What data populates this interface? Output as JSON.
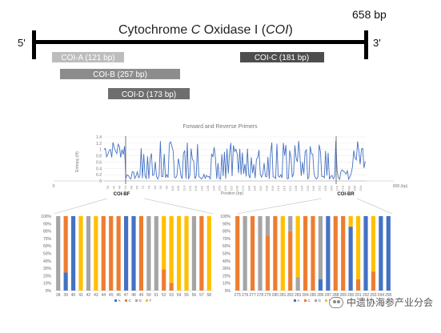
{
  "map": {
    "gene_title_prefix": "Cytochrome ",
    "gene_title_italic": "C",
    "gene_title_mid": " Oxidase I (",
    "gene_title_abbrev": "COI",
    "gene_title_suffix": ")",
    "end_label": "658 bp",
    "five_prime": "5'",
    "three_prime": "3'",
    "fragments": [
      {
        "label": "COI-A (121 bp)",
        "color": "#bdbdbd"
      },
      {
        "label": "COI-B (257 bp)",
        "color": "#8c8c8c"
      },
      {
        "label": "COI-D (173 bp)",
        "color": "#6e6e6e"
      },
      {
        "label": "COI-C  (181 bp)",
        "color": "#4d4d4d"
      }
    ]
  },
  "chart_data": [
    {
      "type": "line",
      "title": "Forward and Reverse Primers",
      "xlabel": "Position (bp)",
      "ylabel": "Entropy (H)",
      "ylim": [
        0,
        1.4
      ],
      "yticks": [
        "0",
        "0.2",
        "0.4",
        "0.6",
        "0.8",
        "1",
        "1.2",
        "1.4"
      ],
      "x_start_label": "0",
      "x_end_label": "658 (bp)",
      "primer_labels": [
        "COI-BF",
        "COI-BR"
      ],
      "color": "#4472c4",
      "dense_tick_labels": [
        "36",
        "42",
        "48",
        "54",
        "60",
        "66",
        "72",
        "78",
        "84",
        "90",
        "96",
        "102",
        "108",
        "114",
        "120",
        "126",
        "132",
        "138",
        "144",
        "150",
        "156",
        "162",
        "168",
        "174",
        "180",
        "186",
        "192",
        "198",
        "204",
        "210",
        "216",
        "222",
        "228",
        "234",
        "240",
        "246",
        "252",
        "258",
        "264",
        "270",
        "276",
        "282",
        "288",
        "294"
      ]
    },
    {
      "type": "bar",
      "stacked": true,
      "categories": [
        "38",
        "39",
        "40",
        "41",
        "42",
        "43",
        "44",
        "45",
        "46",
        "47",
        "48",
        "49",
        "50",
        "51",
        "52",
        "53",
        "54",
        "55",
        "56",
        "57",
        "58"
      ],
      "yticks": [
        "0%",
        "10%",
        "20%",
        "30%",
        "40%",
        "50%",
        "60%",
        "70%",
        "80%",
        "90%",
        "100%"
      ],
      "series_names": [
        "A",
        "C",
        "G",
        "T"
      ],
      "series_colors": [
        "#4472c4",
        "#ed7d31",
        "#a5a5a5",
        "#ffc000"
      ]
    },
    {
      "type": "bar",
      "stacked": true,
      "categories": [
        "275",
        "276",
        "277",
        "278",
        "279",
        "280",
        "281",
        "282",
        "283",
        "284",
        "285",
        "286",
        "287",
        "288",
        "289",
        "290",
        "291",
        "292",
        "293",
        "294",
        "295"
      ],
      "yticks": [
        "0%",
        "10%",
        "20%",
        "30%",
        "40%",
        "50%",
        "60%",
        "70%",
        "80%",
        "90%",
        "100%"
      ],
      "series_names": [
        "A",
        "C",
        "G",
        "T"
      ],
      "series_colors": [
        "#4472c4",
        "#ed7d31",
        "#a5a5a5",
        "#ffc000"
      ]
    }
  ],
  "watermark": "中遗协海参产业分会"
}
